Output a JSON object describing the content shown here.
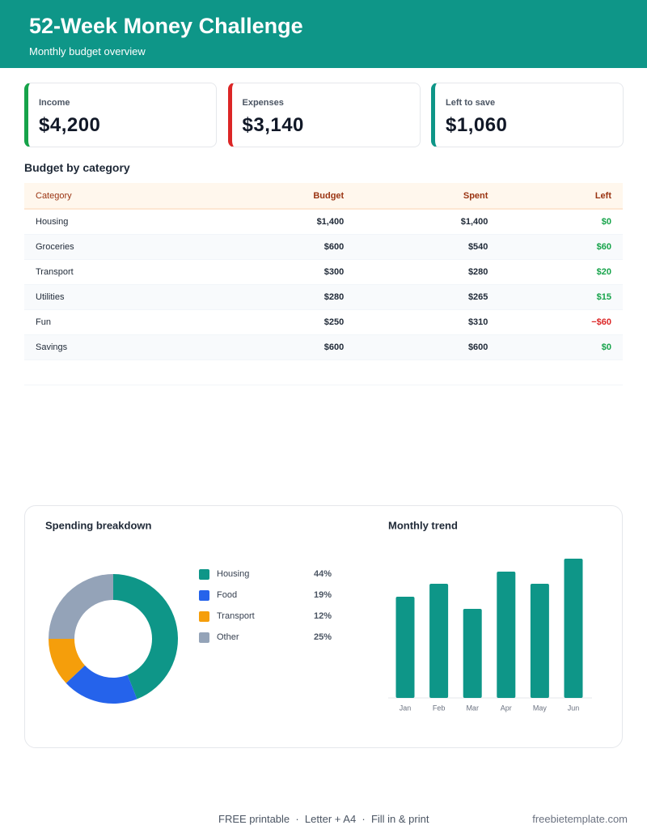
{
  "header": {
    "title": "52-Week Money Challenge",
    "subtitle": "Monthly budget overview"
  },
  "cards": [
    {
      "label": "Income",
      "value": "$4,200",
      "color": "#16a34a"
    },
    {
      "label": "Expenses",
      "value": "$3,140",
      "color": "#dc2626"
    },
    {
      "label": "Left to save",
      "value": "$1,060",
      "color": "#0e9688"
    }
  ],
  "table": {
    "title": "Budget by category",
    "columns": [
      "Category",
      "Budget",
      "Spent",
      "Left"
    ],
    "rows": [
      [
        "Housing",
        "$1,400",
        "$1,400",
        "$0"
      ],
      [
        "Groceries",
        "$600",
        "$540",
        "$60"
      ],
      [
        "Transport",
        "$300",
        "$280",
        "$20"
      ],
      [
        "Utilities",
        "$280",
        "$265",
        "$15"
      ],
      [
        "Fun",
        "$250",
        "$310",
        "−$60"
      ],
      [
        "Savings",
        "$600",
        "$600",
        "$0"
      ]
    ]
  },
  "chart_data": [
    {
      "type": "pie",
      "title": "Spending breakdown",
      "categories": [
        "Housing",
        "Food",
        "Transport",
        "Other"
      ],
      "values": [
        44,
        19,
        12,
        25
      ],
      "value_labels": [
        "44%",
        "19%",
        "12%",
        "25%"
      ],
      "colors": [
        "#0e9688",
        "#2563eb",
        "#f59e0b",
        "#94a3b8"
      ]
    },
    {
      "type": "bar",
      "title": "Monthly trend",
      "categories": [
        "Jan",
        "Feb",
        "Mar",
        "Apr",
        "May",
        "Jun"
      ],
      "values": [
        125,
        141,
        110,
        156,
        141,
        172
      ],
      "color": "#0e9688"
    }
  ],
  "footer": {
    "text": "FREE printable  ·  Letter + A4  ·  Fill in & print",
    "site": "freebietemplate.com"
  }
}
